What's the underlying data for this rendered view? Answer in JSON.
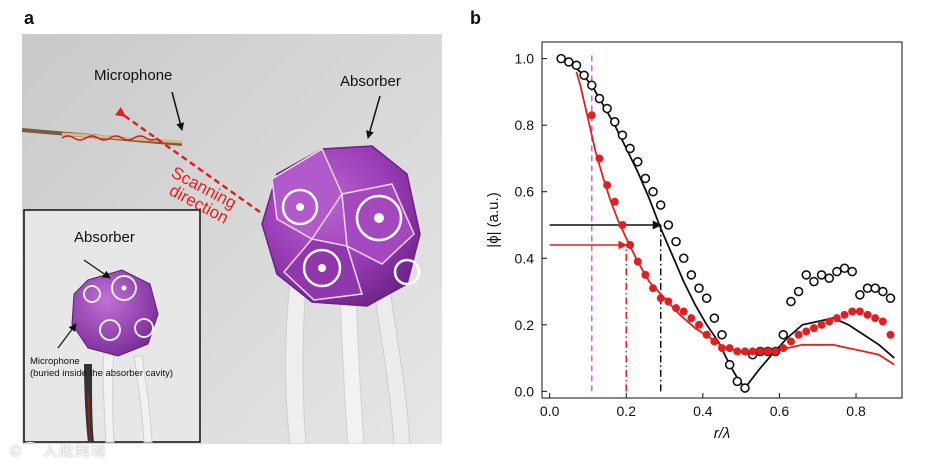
{
  "panel_a": {
    "letter": "a",
    "labels": {
      "microphone": "Microphone",
      "absorber": "Absorber",
      "scanning": "Scanning",
      "direction": "direction",
      "inset_absorber": "Absorber",
      "inset_microphone": "Microphone",
      "inset_note": "(buried inside the absorber cavity)"
    },
    "colors": {
      "absorber": "#9b3fb8",
      "arrow": "#e02020",
      "background": "#cfcfcf"
    }
  },
  "panel_b": {
    "letter": "b"
  },
  "watermark": "©⁀ 人政跨境",
  "chart_data": {
    "type": "scatter",
    "xlabel": "r/λ",
    "ylabel": "|ϕ| (a.u.)",
    "xlim": [
      -0.02,
      0.92
    ],
    "ylim": [
      -0.02,
      1.05
    ],
    "xticks": [
      0.0,
      0.2,
      0.4,
      0.6,
      0.8
    ],
    "yticks": [
      0.0,
      0.2,
      0.4,
      0.6,
      0.8,
      1.0
    ],
    "xtick_labels": [
      "0.0",
      "0.2",
      "0.4",
      "0.6",
      "0.8"
    ],
    "ytick_labels": [
      "0.0",
      "0.2",
      "0.4",
      "0.6",
      "0.8",
      "1.0"
    ],
    "series": [
      {
        "name": "black measured (open circles)",
        "kind": "markers",
        "color": "#111111",
        "filled": false,
        "x": [
          0.03,
          0.05,
          0.07,
          0.09,
          0.11,
          0.13,
          0.15,
          0.17,
          0.19,
          0.21,
          0.23,
          0.25,
          0.27,
          0.29,
          0.31,
          0.33,
          0.35,
          0.37,
          0.39,
          0.41,
          0.43,
          0.45,
          0.47,
          0.49,
          0.51,
          0.53,
          0.55,
          0.57,
          0.59,
          0.61,
          0.63,
          0.65,
          0.67,
          0.69,
          0.71,
          0.73,
          0.75,
          0.77,
          0.79,
          0.81,
          0.83,
          0.85,
          0.87,
          0.89
        ],
        "y": [
          1.0,
          0.99,
          0.98,
          0.95,
          0.92,
          0.88,
          0.85,
          0.81,
          0.77,
          0.73,
          0.69,
          0.64,
          0.6,
          0.56,
          0.5,
          0.45,
          0.4,
          0.35,
          0.31,
          0.28,
          0.22,
          0.17,
          0.08,
          0.03,
          0.01,
          0.11,
          0.12,
          0.12,
          0.12,
          0.17,
          0.27,
          0.3,
          0.35,
          0.33,
          0.35,
          0.34,
          0.36,
          0.37,
          0.36,
          0.29,
          0.31,
          0.31,
          0.3,
          0.28
        ]
      },
      {
        "name": "red measured (filled dots)",
        "kind": "markers",
        "color": "#e02020",
        "filled": true,
        "x": [
          0.11,
          0.13,
          0.15,
          0.17,
          0.19,
          0.21,
          0.23,
          0.25,
          0.27,
          0.29,
          0.31,
          0.33,
          0.35,
          0.37,
          0.39,
          0.41,
          0.43,
          0.45,
          0.47,
          0.49,
          0.51,
          0.53,
          0.55,
          0.57,
          0.59,
          0.61,
          0.63,
          0.65,
          0.67,
          0.69,
          0.71,
          0.73,
          0.75,
          0.77,
          0.79,
          0.81,
          0.83,
          0.85,
          0.87,
          0.89
        ],
        "y": [
          0.83,
          0.7,
          0.62,
          0.57,
          0.5,
          0.44,
          0.39,
          0.35,
          0.31,
          0.28,
          0.27,
          0.25,
          0.24,
          0.22,
          0.2,
          0.17,
          0.15,
          0.13,
          0.13,
          0.12,
          0.12,
          0.12,
          0.12,
          0.12,
          0.12,
          0.13,
          0.15,
          0.17,
          0.18,
          0.19,
          0.2,
          0.21,
          0.22,
          0.23,
          0.24,
          0.24,
          0.23,
          0.22,
          0.21,
          0.17
        ]
      },
      {
        "name": "black theory",
        "kind": "line",
        "color": "#111111",
        "x": [
          0.02,
          0.05,
          0.08,
          0.11,
          0.14,
          0.17,
          0.2,
          0.23,
          0.26,
          0.29,
          0.32,
          0.35,
          0.38,
          0.41,
          0.44,
          0.47,
          0.49,
          0.51,
          0.53,
          0.55,
          0.58,
          0.62,
          0.66,
          0.7,
          0.74,
          0.78,
          0.82,
          0.86,
          0.9
        ],
        "y": [
          1.0,
          0.99,
          0.96,
          0.92,
          0.86,
          0.8,
          0.73,
          0.66,
          0.58,
          0.49,
          0.41,
          0.33,
          0.26,
          0.2,
          0.15,
          0.08,
          0.04,
          0.01,
          0.04,
          0.07,
          0.11,
          0.16,
          0.2,
          0.21,
          0.22,
          0.2,
          0.17,
          0.14,
          0.1
        ]
      },
      {
        "name": "red theory",
        "kind": "line",
        "color": "#e02020",
        "x": [
          0.07,
          0.08,
          0.1,
          0.12,
          0.14,
          0.16,
          0.18,
          0.2,
          0.23,
          0.26,
          0.3,
          0.34,
          0.38,
          0.42,
          0.46,
          0.5,
          0.54,
          0.58,
          0.62,
          0.66,
          0.7,
          0.74,
          0.78,
          0.82,
          0.86,
          0.9
        ],
        "y": [
          0.96,
          0.92,
          0.82,
          0.72,
          0.64,
          0.57,
          0.51,
          0.46,
          0.39,
          0.33,
          0.28,
          0.23,
          0.19,
          0.16,
          0.13,
          0.12,
          0.12,
          0.12,
          0.13,
          0.14,
          0.14,
          0.14,
          0.13,
          0.12,
          0.11,
          0.08
        ]
      }
    ],
    "reference_lines": [
      {
        "name": "magenta vertical dashed",
        "orientation": "vertical",
        "x": 0.11,
        "y_from": 0.0,
        "y_to": 1.02,
        "color": "#cc66dd",
        "style": "dashed"
      },
      {
        "name": "black arrow",
        "orientation": "horizontal",
        "y": 0.5,
        "x_from": 0.0,
        "x_to": 0.29,
        "color": "#111111",
        "style": "solid-arrow"
      },
      {
        "name": "black dash-dot drop",
        "orientation": "vertical",
        "x": 0.29,
        "y_from": 0.0,
        "y_to": 0.5,
        "color": "#111111",
        "style": "dashdot"
      },
      {
        "name": "red arrow",
        "orientation": "horizontal",
        "y": 0.44,
        "x_from": 0.0,
        "x_to": 0.2,
        "color": "#e02020",
        "style": "solid-arrow"
      },
      {
        "name": "red dash-dot drop",
        "orientation": "vertical",
        "x": 0.2,
        "y_from": 0.0,
        "y_to": 0.44,
        "color": "#e02020",
        "style": "dashdot"
      }
    ]
  }
}
